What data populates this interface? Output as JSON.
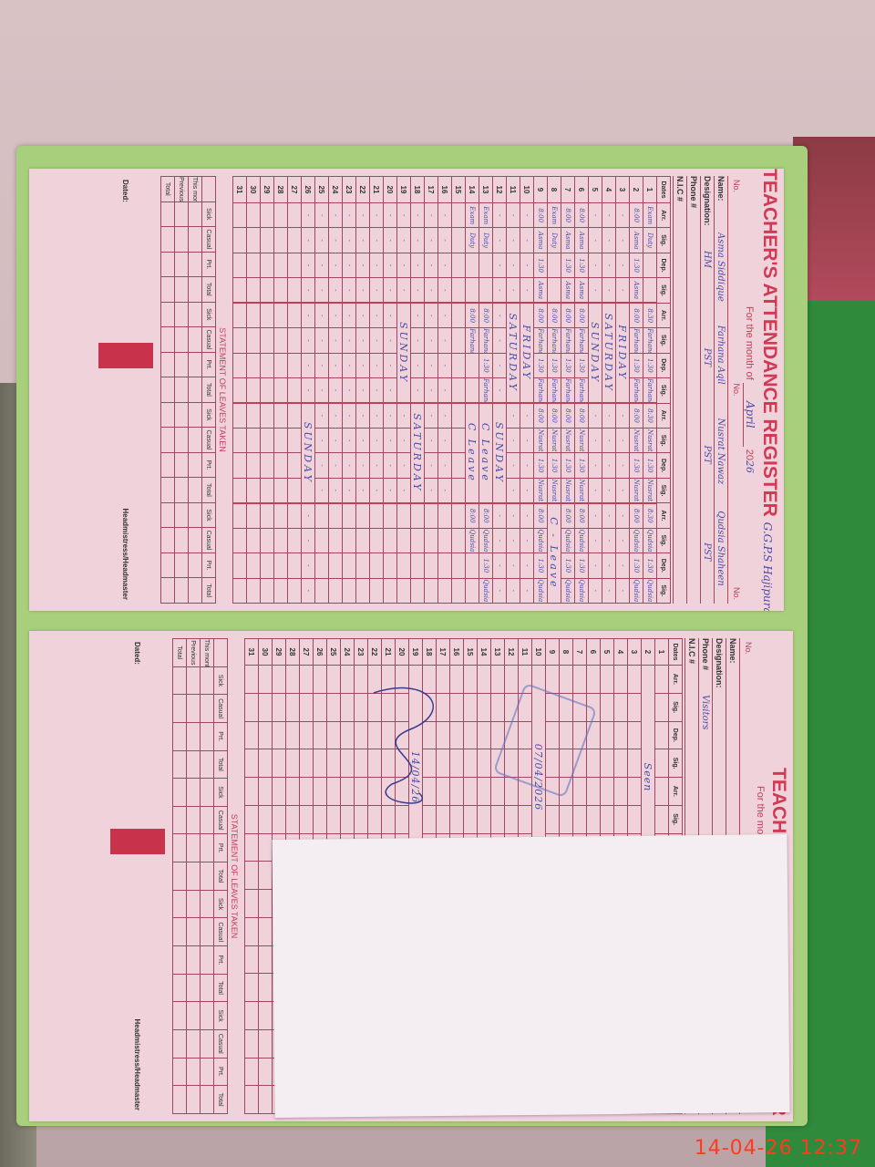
{
  "left_page": {
    "title": "TEACHER'S ATTENDANCE REGISTER",
    "school_note": "G.G.P.S Hajipura",
    "month_label": "For the month of",
    "month": "April",
    "year_prefix": "20",
    "year": "26",
    "no_label": "No.",
    "name_label": "Name:",
    "designation_label": "Designation:",
    "phone_label": "Phone #",
    "nic_label": "N.I.C #",
    "teachers": [
      {
        "name": "Asma Siddique",
        "designation": "HM"
      },
      {
        "name": "Farhana Aqil",
        "designation": "PST"
      },
      {
        "name": "Nusrat Nawaz",
        "designation": "PST"
      },
      {
        "name": "Qudsia Shaheen",
        "designation": "PST"
      }
    ],
    "headers": {
      "dates": "Dates",
      "arr": "Arr.",
      "sig": "Sig.",
      "dep": "Dep."
    },
    "rows": [
      [
        [
          "Exam",
          "Duty",
          "",
          ""
        ],
        [
          "8:30",
          "Farhana",
          "1:30",
          "Farhana"
        ],
        [
          "8:30",
          "Nusrat",
          "1:30",
          "Nusrat"
        ],
        [
          "8:30",
          "Qudsia",
          "1:30",
          "Qudsia"
        ]
      ],
      [
        [
          "8:00",
          "Asma",
          "1:30",
          "Asma"
        ],
        [
          "8:00",
          "Farhana",
          "1:30",
          "Farhana"
        ],
        [
          "8:00",
          "Nusrat",
          "1:30",
          "Nusrat"
        ],
        [
          "8:00",
          "Qudsia",
          "1:30",
          "Qudsia"
        ]
      ],
      [
        [
          "-",
          "-",
          "-",
          "-"
        ],
        "FRIDAY",
        [
          "-",
          "-",
          "-",
          "-"
        ],
        [
          "-",
          "-",
          "-",
          "-"
        ]
      ],
      [
        [
          "-",
          "-",
          "-",
          "-"
        ],
        "SATURDAY",
        [
          "-",
          "-",
          "-",
          "-"
        ],
        [
          "-",
          "-",
          "-",
          "-"
        ]
      ],
      [
        [
          "-",
          "-",
          "-",
          "-"
        ],
        "SUNDAY",
        [
          "-",
          "-",
          "-",
          "-"
        ],
        [
          "-",
          "-",
          "-",
          "-"
        ]
      ],
      [
        [
          "8:00",
          "Asma",
          "1:30",
          "Asma"
        ],
        [
          "8:00",
          "Farhana",
          "1:30",
          "Farhana"
        ],
        [
          "8:00",
          "Nusrat",
          "1:30",
          "Nusrat"
        ],
        [
          "8:00",
          "Qudsia",
          "1:30",
          "Qudsia"
        ]
      ],
      [
        [
          "8:00",
          "Asma",
          "1:30",
          "Asma"
        ],
        [
          "8:00",
          "Farhana",
          "1:30",
          "Farhana"
        ],
        [
          "8:00",
          "Nusrat",
          "1:30",
          "Nusrat"
        ],
        [
          "8:00",
          "Qudsia",
          "1:30",
          "Qudsia"
        ]
      ],
      [
        [
          "Exam",
          "Duty",
          "",
          ""
        ],
        [
          "8:00",
          "Farhana",
          "1:30",
          "Farhana"
        ],
        [
          "8:00",
          "Nusrat",
          "1:30",
          "Nusrat"
        ],
        "C - Leave"
      ],
      [
        [
          "8:00",
          "Asma",
          "1:30",
          "Asma"
        ],
        [
          "8:00",
          "Farhana",
          "1:30",
          "Farhana"
        ],
        [
          "8:00",
          "Nusrat",
          "1:30",
          "Nusrat"
        ],
        [
          "8:00",
          "Qudsia",
          "1:30",
          "Qudsia"
        ]
      ],
      [
        [
          "-",
          "-",
          "-",
          "-"
        ],
        "FRIDAY",
        [
          "-",
          "-",
          "-",
          "-"
        ],
        [
          "-",
          "-",
          "-",
          "-"
        ]
      ],
      [
        [
          "-",
          "-",
          "-",
          "-"
        ],
        "SATURDAY",
        [
          "-",
          "-",
          "-",
          "-"
        ],
        [
          "-",
          "-",
          "-",
          "-"
        ]
      ],
      [
        [
          "-",
          "-",
          "-",
          "-"
        ],
        [
          "-",
          "-",
          "-",
          "-"
        ],
        "SUNDAY",
        [
          "-",
          "-",
          "-",
          "-"
        ]
      ],
      [
        [
          "Exam",
          "Duty",
          "",
          ""
        ],
        [
          "8:00",
          "Farhana",
          "1:30",
          "Farhana"
        ],
        "C Leave",
        [
          "8:00",
          "Qudsia",
          "1:30",
          "Qudsia"
        ]
      ],
      [
        [
          "Exam",
          "Duty",
          "",
          ""
        ],
        [
          "8:00",
          "Farhana",
          "",
          ""
        ],
        "C Leave",
        [
          "8:00",
          "Qudsia",
          "",
          ""
        ]
      ],
      [
        [
          "",
          "",
          "",
          ""
        ],
        [
          "",
          "",
          "",
          ""
        ],
        [
          "",
          "",
          "",
          ""
        ],
        [
          "",
          "",
          "",
          ""
        ]
      ],
      [
        [
          "-",
          "-",
          "-",
          "-"
        ],
        [
          "-",
          "-",
          "-",
          "-"
        ],
        [
          "-",
          "-",
          "-",
          "-"
        ],
        [
          "",
          "",
          "",
          ""
        ]
      ],
      [
        [
          "-",
          "-",
          "-",
          "-"
        ],
        [
          "-",
          "-",
          "-",
          "-"
        ],
        [
          "-",
          "-",
          "-",
          "-"
        ],
        [
          "",
          "",
          "",
          ""
        ]
      ],
      [
        [
          "-",
          "-",
          "-",
          "-"
        ],
        [
          "-",
          "-",
          "-",
          "-"
        ],
        "SATURDAY",
        [
          "",
          "",
          "",
          ""
        ]
      ],
      [
        [
          "-",
          "-",
          "-",
          "-"
        ],
        "SUNDAY",
        [
          "-",
          "-",
          "-",
          "-"
        ],
        [
          "",
          "",
          "",
          ""
        ]
      ],
      [
        [
          "-",
          "-",
          "-",
          "-"
        ],
        [
          "-",
          "-",
          "-",
          "-"
        ],
        [
          "-",
          "-",
          "-",
          "-"
        ],
        [
          "",
          "",
          "",
          ""
        ]
      ],
      [
        [
          "-",
          "-",
          "-",
          "-"
        ],
        [
          "-",
          "-",
          "-",
          "-"
        ],
        [
          "-",
          "-",
          "-",
          "-"
        ],
        [
          "",
          "",
          "",
          ""
        ]
      ],
      [
        [
          "-",
          "-",
          "-",
          "-"
        ],
        [
          "-",
          "-",
          "-",
          "-"
        ],
        [
          "-",
          "-",
          "-",
          "-"
        ],
        [
          "",
          "",
          "",
          ""
        ]
      ],
      [
        [
          "-",
          "-",
          "-",
          "-"
        ],
        [
          "-",
          "-",
          "-",
          "-"
        ],
        [
          "-",
          "-",
          "-",
          "-"
        ],
        [
          "",
          "",
          "",
          ""
        ]
      ],
      [
        [
          "-",
          "-",
          "-",
          "-"
        ],
        [
          "-",
          "-",
          "-",
          "-"
        ],
        [
          "-",
          "-",
          "-",
          "-"
        ],
        [
          "",
          "",
          "",
          ""
        ]
      ],
      [
        [
          "-",
          "-",
          "-",
          "-"
        ],
        [
          "-",
          "-",
          "-",
          "-"
        ],
        [
          "-",
          "-",
          "-",
          "-"
        ],
        [
          "",
          "",
          "",
          ""
        ]
      ],
      [
        [
          "-",
          "-",
          "-",
          "-"
        ],
        [
          "-",
          "-",
          "-",
          "-"
        ],
        "SUNDAY",
        [
          "-",
          "-",
          "-",
          "-"
        ]
      ],
      [
        [
          "",
          "",
          "",
          ""
        ],
        [
          "",
          "",
          "",
          ""
        ],
        [
          "",
          "",
          "",
          ""
        ],
        [
          "",
          "",
          "",
          ""
        ]
      ],
      [
        [
          "",
          "",
          "",
          ""
        ],
        [
          "",
          "",
          "",
          ""
        ],
        [
          "",
          "",
          "",
          ""
        ],
        [
          "",
          "",
          "",
          ""
        ]
      ],
      [
        [
          "",
          "",
          "",
          ""
        ],
        [
          "",
          "",
          "",
          ""
        ],
        [
          "",
          "",
          "",
          ""
        ],
        [
          "",
          "",
          "",
          ""
        ]
      ],
      [
        [
          "",
          "",
          "",
          ""
        ],
        [
          "",
          "",
          "",
          ""
        ],
        [
          "",
          "",
          "",
          ""
        ],
        [
          "",
          "",
          "",
          ""
        ]
      ],
      [
        [
          "",
          "",
          "",
          ""
        ],
        [
          "",
          "",
          "",
          ""
        ],
        [
          "",
          "",
          "",
          ""
        ],
        [
          "",
          "",
          "",
          ""
        ]
      ]
    ],
    "statement_title": "STATEMENT OF LEAVES TAKEN",
    "statement_cols": [
      "Sick",
      "Casual",
      "Prt.",
      "Total"
    ],
    "statement_rows": [
      "This month",
      "Previous",
      "Total"
    ],
    "dated_label": "Dated:",
    "signatory": "Headmistress/Headmaster"
  },
  "right_page": {
    "title": "TEACHER'S ATTENDANCE REGISTER",
    "month_label": "For the month of",
    "no_label": "No.",
    "name_label": "Name:",
    "designation_label": "Designation:",
    "phone_label": "Phone #",
    "phone_value": "Visitors",
    "nic_label": "N.I.C #",
    "headers": {
      "dates": "Dates",
      "arr": "Arr.",
      "sig": "Sig.",
      "dep": "Dep."
    },
    "entries": [
      {
        "row": 2,
        "text": "Seen"
      },
      {
        "row": 10,
        "text": "07/04/2026"
      },
      {
        "row": 19,
        "text": "14/04/26"
      }
    ],
    "statement_title": "STATEMENT OF LEAVES TAKEN",
    "statement_cols": [
      "Sick",
      "Casual",
      "Prt.",
      "Total"
    ],
    "statement_rows": [
      "This month",
      "Previous",
      "Total"
    ],
    "dated_label": "Dated:",
    "signatory": "Headmistress/Headmaster"
  },
  "timestamp": "14-04-26  12:37"
}
